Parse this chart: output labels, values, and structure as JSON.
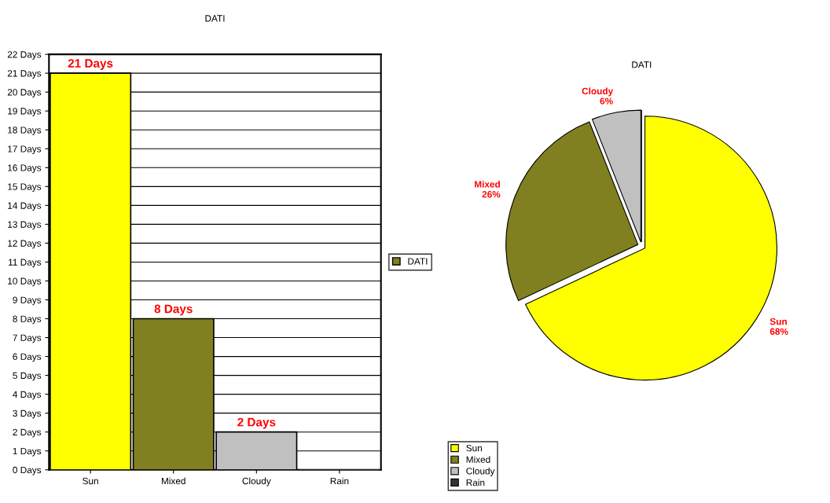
{
  "chart_data": [
    {
      "type": "bar",
      "title": "DATI",
      "categories": [
        "Sun",
        "Mixed",
        "Cloudy",
        "Rain"
      ],
      "series": [
        {
          "name": "DATI",
          "color": "#808020",
          "values": [
            21,
            8,
            2,
            0
          ],
          "colors": [
            "#ffff00",
            "#808020",
            "#c0c0c0",
            "#333333"
          ],
          "value_labels": [
            "21 Days",
            "8 Days",
            "2 Days",
            null
          ]
        }
      ],
      "ylim": [
        0,
        22
      ],
      "yticks": [
        {
          "value": 0,
          "label": "0 Days"
        },
        {
          "value": 1,
          "label": "1 Days"
        },
        {
          "value": 2,
          "label": "2 Days"
        },
        {
          "value": 3,
          "label": "3 Days"
        },
        {
          "value": 4,
          "label": "4 Days"
        },
        {
          "value": 5,
          "label": "5 Days"
        },
        {
          "value": 6,
          "label": "6 Days"
        },
        {
          "value": 7,
          "label": "7 Days"
        },
        {
          "value": 8,
          "label": "8 Days"
        },
        {
          "value": 9,
          "label": "9 Days"
        },
        {
          "value": 10,
          "label": "10 Days"
        },
        {
          "value": 11,
          "label": "11 Days"
        },
        {
          "value": 12,
          "label": "12 Days"
        },
        {
          "value": 13,
          "label": "13 Days"
        },
        {
          "value": 14,
          "label": "14 Days"
        },
        {
          "value": 15,
          "label": "15 Days"
        },
        {
          "value": 16,
          "label": "16 Days"
        },
        {
          "value": 17,
          "label": "17 Days"
        },
        {
          "value": 18,
          "label": "18 Days"
        },
        {
          "value": 19,
          "label": "19 Days"
        },
        {
          "value": 20,
          "label": "20 Days"
        },
        {
          "value": 21,
          "label": "21 Days"
        },
        {
          "value": 22,
          "label": "22 Days"
        }
      ],
      "grid": "y",
      "legend": "right"
    },
    {
      "type": "pie",
      "title": "DATI",
      "categories": [
        "Sun",
        "Mixed",
        "Cloudy",
        "Rain"
      ],
      "values": [
        68,
        26,
        6,
        0
      ],
      "colors": [
        "#ffff00",
        "#808020",
        "#c0c0c0",
        "#333333"
      ],
      "value_labels": [
        "68%",
        "26%",
        "6%",
        null
      ],
      "legend": "bottom left"
    }
  ]
}
